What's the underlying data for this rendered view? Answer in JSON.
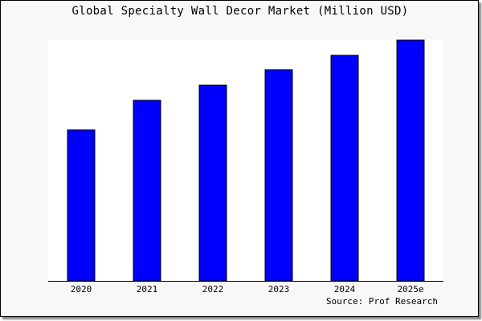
{
  "chart_data": {
    "type": "bar",
    "title": "Global Specialty Wall Decor Market (Million USD)",
    "categories": [
      "2020",
      "2021",
      "2022",
      "2023",
      "2024",
      "2025e"
    ],
    "values": [
      0.627,
      0.75,
      0.813,
      0.877,
      0.937,
      1.0
    ],
    "value_note": "relative to 2025e (no value axis printed)",
    "xlabel": "",
    "ylabel": "",
    "grid": false,
    "bar_color": "#0000ff",
    "bar_outline": "#000000",
    "plot_background": "#ffffff",
    "source": "Source: Prof Research"
  }
}
